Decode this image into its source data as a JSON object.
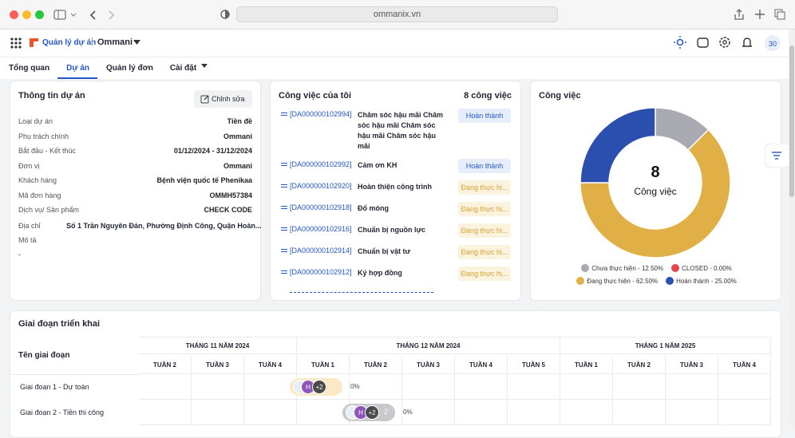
{
  "browser": {
    "url": "ommanix.vn"
  },
  "header": {
    "app_name": "Quản lý dự án",
    "workspace": "Ommani"
  },
  "tabs": [
    "Tổng quan",
    "Dự án",
    "Quản lý đơn",
    "Cài đặt"
  ],
  "project_info": {
    "title": "Thông tin dự án",
    "edit_button": "Chỉnh sửa",
    "fields": [
      [
        "Loại dự án",
        "Tiền đề"
      ],
      [
        "Phụ trách chính",
        "Ommani"
      ],
      [
        "Bắt đầu - Kết thúc",
        "01/12/2024 - 31/12/2024"
      ],
      [
        "Đơn vị",
        "Ommani"
      ],
      [
        "Khách hàng",
        "Bệnh viện quốc tế Phenikaa"
      ],
      [
        "Mã đơn hàng",
        "OMMH57384"
      ],
      [
        "Dịch vụ/ Sản phẩm",
        "CHECK CODE"
      ]
    ],
    "address_label": "Địa chỉ",
    "address": "Số 1 Trần Nguyên Đán, Phường Định Công, Quận Hoàn...",
    "description_label": "Mô tả",
    "description": "-"
  },
  "tasks": {
    "title": "Công việc của tôi",
    "count": "8 công việc",
    "items": [
      {
        "code": "[DA000000102994]",
        "name": "Chăm sóc hậu mãi Chăm sóc hậu mãi Chăm sóc hậu mãi Chăm sóc hậu mãi",
        "status": "Hoàn thành"
      },
      {
        "code": "[DA000000102992]",
        "name": "Cảm ơn KH",
        "status": "Hoàn thành"
      },
      {
        "code": "[DA000000102920]",
        "name": "Hoàn thiện công trình",
        "status": "Đang thực hi..."
      },
      {
        "code": "[DA000000102918]",
        "name": "Đổ móng",
        "status": "Đang thực hi..."
      },
      {
        "code": "[DA000000102916]",
        "name": "Chuẩn bị nguồn lực",
        "status": "Đang thực hi..."
      },
      {
        "code": "[DA000000102914]",
        "name": "Chuẩn bị vật tư",
        "status": "Đang thực hi..."
      },
      {
        "code": "[DA000000102912]",
        "name": "Ký hợp đồng",
        "status": "Đang thực hi..."
      }
    ]
  },
  "chart_data": {
    "type": "pie",
    "title": "Công việc",
    "center_value": 8,
    "center_label": "Công việc",
    "labels": [
      "Chưa thực hiện - 12.50%",
      "CLOSED - 0.00%",
      "Đang thực hiện - 62.50%",
      "Hoàn thành - 25.00%"
    ],
    "values": [
      12.5,
      0,
      62.5,
      25
    ],
    "colors": [
      "#a8a9b1",
      "#e4474c",
      "#e0af45",
      "#2a4fae"
    ]
  },
  "gantt": {
    "title": "Giai đoạn triển khai",
    "name_header": "Tên giai đoạn",
    "months": [
      {
        "label": "THÁNG 11 NĂM 2024",
        "weeks": [
          "TUẦN 2",
          "TUẦN 3",
          "TUẦN 4"
        ]
      },
      {
        "label": "THÁNG 12 NĂM 2024",
        "weeks": [
          "TUẦN 1",
          "TUẦN 2",
          "TUẦN 3",
          "TUẦN 4",
          "TUẦN 5"
        ]
      },
      {
        "label": "THÁNG 1 NĂM 2025",
        "weeks": [
          "TUẦN 1",
          "TUẦN 2",
          "TUẦN 3",
          "TUẦN 4"
        ]
      }
    ],
    "rows": [
      {
        "name": "Giai đoạn 1 - Dự toán",
        "avatar": "H",
        "more": "+2",
        "progress": "0%"
      },
      {
        "name": "Giai đoạn 2 - Tiền thi công",
        "avatar": "H",
        "more": "+2",
        "count": "2",
        "progress": "0%"
      }
    ]
  }
}
